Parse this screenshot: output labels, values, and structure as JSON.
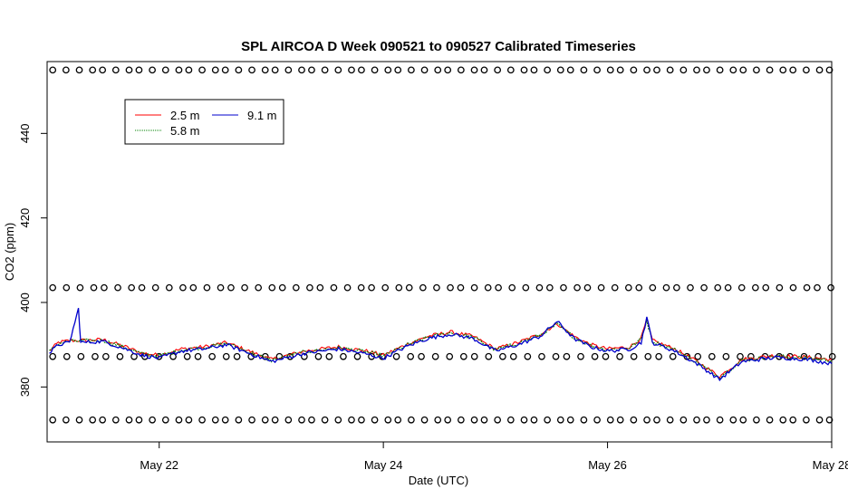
{
  "chart_data": {
    "type": "line",
    "title": "SPL AIRCOA D  Week 090521 to 090527  Calibrated Timeseries",
    "xlabel": "Date (UTC)",
    "ylabel": "CO2 (ppm)",
    "x_unit": "days (May 2009)",
    "xlim": [
      21.0,
      28.0
    ],
    "ylim": [
      367,
      457
    ],
    "x_ticks": [
      {
        "value": 22,
        "label": "May 22"
      },
      {
        "value": 24,
        "label": "May 24"
      },
      {
        "value": 26,
        "label": "May 26"
      },
      {
        "value": 28,
        "label": "May 28"
      }
    ],
    "y_ticks": [
      {
        "value": 380,
        "label": "380"
      },
      {
        "value": 400,
        "label": "400"
      },
      {
        "value": 420,
        "label": "420"
      },
      {
        "value": 440,
        "label": "440"
      }
    ],
    "grid": false,
    "legend": {
      "placement": "top-left",
      "entries": [
        {
          "label": "2.5 m",
          "color": "#ff0000",
          "style": "solid"
        },
        {
          "label": "5.8 m",
          "color": "#008000",
          "style": "dotted"
        },
        {
          "label": "9.1 m",
          "color": "#0000cc",
          "style": "solid"
        }
      ]
    },
    "series": [
      {
        "name": "2.5 m",
        "color": "#ff0000",
        "x": [
          21.02,
          21.1,
          21.2,
          21.3,
          21.5,
          21.7,
          21.85,
          22.0,
          22.2,
          22.4,
          22.6,
          22.8,
          23.0,
          23.3,
          23.6,
          23.85,
          24.0,
          24.2,
          24.4,
          24.6,
          24.8,
          25.0,
          25.2,
          25.4,
          25.55,
          25.7,
          25.85,
          26.0,
          26.2,
          26.3,
          26.35,
          26.4,
          26.6,
          26.8,
          27.0,
          27.2,
          27.5,
          27.8,
          28.0
        ],
        "y": [
          388.5,
          390.5,
          391.0,
          391.0,
          391.2,
          389.5,
          388.0,
          387.5,
          389.0,
          389.5,
          390.5,
          388.5,
          386.5,
          388.5,
          389.5,
          388.5,
          387.5,
          390.0,
          392.0,
          393.0,
          392.0,
          389.0,
          390.5,
          392.5,
          395.0,
          392.0,
          390.0,
          389.0,
          389.5,
          391.5,
          396.0,
          391.0,
          389.0,
          386.0,
          382.5,
          386.5,
          387.5,
          387.0,
          386.5
        ]
      },
      {
        "name": "5.8 m",
        "color": "#008000",
        "x": [
          21.02,
          21.1,
          21.2,
          21.3,
          21.5,
          21.7,
          21.85,
          22.0,
          22.2,
          22.4,
          22.6,
          22.8,
          23.0,
          23.3,
          23.6,
          23.85,
          24.0,
          24.2,
          24.4,
          24.6,
          24.8,
          25.0,
          25.2,
          25.4,
          25.55,
          25.7,
          25.85,
          26.0,
          26.2,
          26.3,
          26.35,
          26.4,
          26.6,
          26.8,
          27.0,
          27.2,
          27.5,
          27.8,
          28.0
        ],
        "y": [
          388.3,
          390.3,
          390.8,
          390.9,
          391.0,
          389.3,
          387.8,
          387.3,
          388.8,
          389.3,
          390.3,
          388.3,
          386.3,
          388.3,
          389.3,
          388.3,
          387.3,
          389.8,
          391.8,
          392.8,
          391.8,
          388.8,
          390.3,
          392.3,
          394.8,
          391.8,
          389.8,
          388.8,
          389.3,
          391.3,
          395.8,
          390.8,
          388.8,
          385.8,
          382.3,
          386.3,
          387.3,
          386.8,
          386.3
        ]
      },
      {
        "name": "9.1 m",
        "color": "#0000cc",
        "x": [
          21.02,
          21.1,
          21.2,
          21.28,
          21.3,
          21.5,
          21.7,
          21.85,
          22.0,
          22.2,
          22.4,
          22.6,
          22.8,
          23.0,
          23.3,
          23.6,
          23.85,
          24.0,
          24.2,
          24.4,
          24.6,
          24.8,
          25.0,
          25.2,
          25.4,
          25.55,
          25.7,
          25.85,
          26.0,
          26.2,
          26.3,
          26.35,
          26.4,
          26.6,
          26.8,
          27.0,
          27.2,
          27.5,
          27.8,
          28.0
        ],
        "y": [
          388.0,
          390.0,
          390.5,
          398.5,
          390.5,
          390.8,
          389.0,
          387.5,
          386.8,
          388.5,
          389.0,
          390.0,
          388.0,
          386.0,
          388.0,
          389.0,
          387.8,
          386.8,
          389.5,
          391.5,
          392.5,
          391.5,
          388.5,
          390.0,
          392.0,
          395.5,
          391.5,
          389.5,
          388.5,
          389.0,
          390.5,
          396.5,
          390.5,
          388.5,
          385.5,
          381.8,
          386.0,
          387.0,
          386.5,
          385.5
        ]
      }
    ],
    "points_series": [
      {
        "name": "",
        "y": 455.0,
        "x_start": 21.05,
        "x_end": 27.98,
        "count": 64
      },
      {
        "name": "",
        "y": 403.5,
        "x_start": 21.05,
        "x_end": 27.98,
        "count": 62
      },
      {
        "name": "",
        "y": 387.2,
        "x_start": 21.05,
        "x_end": 27.98,
        "count": 60
      },
      {
        "name": "",
        "y": 372.2,
        "x_start": 21.05,
        "x_end": 27.98,
        "count": 64
      }
    ]
  }
}
